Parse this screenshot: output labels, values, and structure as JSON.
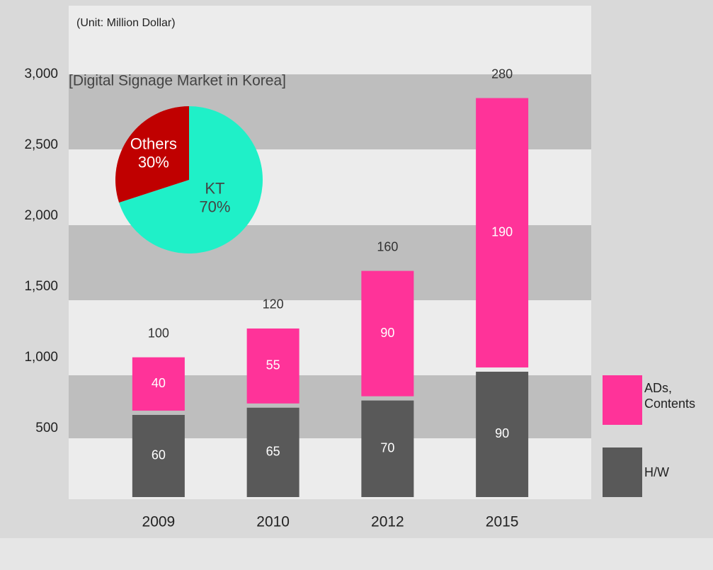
{
  "chart_data": [
    {
      "type": "bar",
      "stacked": true,
      "subtitle": "(Unit: Million Dollar)",
      "categories": [
        "2009",
        "2010",
        "2012",
        "2015"
      ],
      "series": [
        {
          "name": "H/W",
          "color": "#595959",
          "axis": "y2",
          "values": [
            60,
            65,
            70,
            90
          ]
        },
        {
          "name": "ADs, Contents",
          "color": "#ff3399",
          "axis": "y2",
          "values": [
            40,
            55,
            90,
            190
          ]
        }
      ],
      "totals": [
        100,
        120,
        160,
        280
      ],
      "ylim": [
        0,
        3000
      ],
      "yticks": [
        {
          "value": 500,
          "label": "500"
        },
        {
          "value": 1000,
          "label": "1,000"
        },
        {
          "value": 1500,
          "label": "1,500"
        },
        {
          "value": 2000,
          "label": "2,000"
        },
        {
          "value": 2500,
          "label": "2,500"
        },
        {
          "value": 3000,
          "label": "3,000"
        }
      ],
      "y2lim": [
        0,
        295
      ]
    },
    {
      "type": "pie",
      "title": "[Digital Signage Market in Korea]",
      "categories": [
        "KT",
        "Others"
      ],
      "values": [
        70,
        30
      ],
      "value_labels": [
        "70%",
        "30%"
      ],
      "colors": [
        "#1ff0c8",
        "#c00000"
      ]
    }
  ]
}
